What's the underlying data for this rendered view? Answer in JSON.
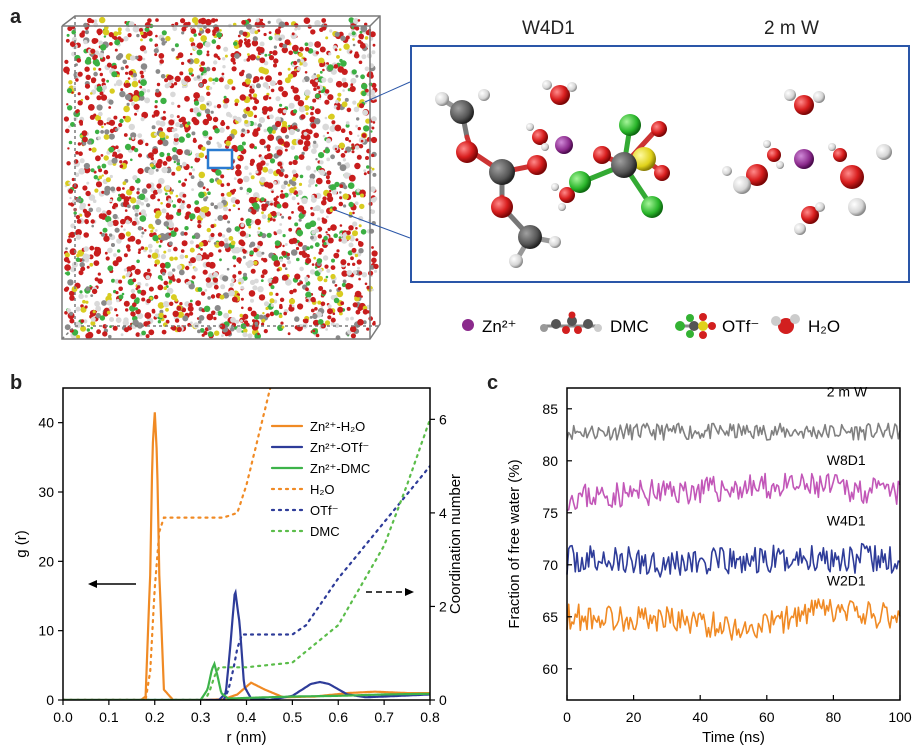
{
  "panel_a": {
    "letter": "a",
    "titles": [
      "W4D1",
      "2 m W"
    ],
    "legend": [
      {
        "label": "Zn²⁺",
        "icon": "zinc-ion-icon",
        "color": "#8b2a8c"
      },
      {
        "label": "DMC",
        "icon": "dmc-molecule-icon",
        "color": "#555555"
      },
      {
        "label": "OTf⁻",
        "icon": "otf-molecule-icon",
        "color": "#33b233"
      },
      {
        "label": "H₂O",
        "icon": "water-molecule-icon",
        "color": "#d21f1f"
      }
    ]
  },
  "chart_data": [
    {
      "panel": "b",
      "type": "line",
      "xlabel": "r (nm)",
      "ylabel_left": "g (r)",
      "ylabel_right": "Coordination number",
      "xlim": [
        0.0,
        0.8
      ],
      "ylim_left": [
        0,
        45
      ],
      "ylim_right": [
        0,
        6.67
      ],
      "x_ticks": [
        "0.0",
        "0.1",
        "0.2",
        "0.3",
        "0.4",
        "0.5",
        "0.6",
        "0.7",
        "0.8"
      ],
      "y_ticks_left": [
        "0",
        "10",
        "20",
        "30",
        "40"
      ],
      "y_ticks_right": [
        "0",
        "2",
        "4",
        "6"
      ],
      "series": [
        {
          "name": "Zn²⁺-H₂O",
          "axis": "left",
          "style": "solid",
          "color": "#f08a24",
          "x": [
            0.0,
            0.17,
            0.18,
            0.19,
            0.195,
            0.2,
            0.205,
            0.21,
            0.22,
            0.24,
            0.3,
            0.35,
            0.38,
            0.41,
            0.44,
            0.48,
            0.55,
            0.62,
            0.68,
            0.75,
            0.8
          ],
          "y": [
            0,
            0,
            0.5,
            18,
            36,
            41.5,
            35,
            18,
            1.5,
            0,
            0,
            0.1,
            0.8,
            2.5,
            1.5,
            0.4,
            0.5,
            1.0,
            1.2,
            1.0,
            1.0
          ]
        },
        {
          "name": "Zn²⁺-OTf⁻",
          "axis": "left",
          "style": "solid",
          "color": "#2e3c99",
          "x": [
            0.0,
            0.34,
            0.355,
            0.365,
            0.375,
            0.385,
            0.395,
            0.41,
            0.45,
            0.5,
            0.54,
            0.56,
            0.58,
            0.62,
            0.66,
            0.7,
            0.8
          ],
          "y": [
            0,
            0,
            1,
            8,
            16,
            11,
            2,
            0.2,
            0,
            0.6,
            2.3,
            2.6,
            2.3,
            0.8,
            0.4,
            0.5,
            0.8
          ]
        },
        {
          "name": "Zn²⁺-DMC",
          "axis": "left",
          "style": "solid",
          "color": "#3db34a",
          "x": [
            0.0,
            0.3,
            0.315,
            0.325,
            0.33,
            0.335,
            0.345,
            0.36,
            0.4,
            0.5,
            0.6,
            0.7,
            0.8
          ],
          "y": [
            0,
            0,
            1.5,
            4.5,
            5.2,
            4,
            1,
            0.2,
            0.3,
            0.5,
            0.6,
            0.8,
            0.9
          ]
        },
        {
          "name": "H₂O",
          "axis": "right",
          "style": "dotted",
          "color": "#f08a24",
          "x": [
            0.0,
            0.18,
            0.19,
            0.2,
            0.21,
            0.22,
            0.3,
            0.35,
            0.38,
            0.4,
            0.43,
            0.46
          ],
          "y": [
            0,
            0,
            0.6,
            2.4,
            3.6,
            3.9,
            3.9,
            3.9,
            4.0,
            4.6,
            5.8,
            7.0
          ]
        },
        {
          "name": "OTf⁻",
          "axis": "right",
          "style": "dotted",
          "color": "#2e3c99",
          "x": [
            0.0,
            0.35,
            0.36,
            0.37,
            0.38,
            0.39,
            0.4,
            0.5,
            0.53,
            0.6,
            0.7,
            0.8
          ],
          "y": [
            0,
            0,
            0.2,
            0.6,
            1.1,
            1.4,
            1.4,
            1.4,
            1.6,
            2.6,
            3.8,
            5.0
          ]
        },
        {
          "name": "DMC",
          "axis": "right",
          "style": "dotted",
          "color": "#5bbd4a",
          "x": [
            0.0,
            0.31,
            0.32,
            0.33,
            0.34,
            0.35,
            0.4,
            0.5,
            0.6,
            0.7,
            0.75,
            0.8
          ],
          "y": [
            0,
            0,
            0.2,
            0.5,
            0.7,
            0.7,
            0.7,
            0.8,
            1.6,
            3.3,
            4.6,
            6.0
          ]
        }
      ],
      "annotations": [
        {
          "text": "b",
          "role": "panel-letter"
        }
      ]
    },
    {
      "panel": "c",
      "type": "line",
      "xlabel": "Time (ns)",
      "ylabel": "Fraction of free water (%)",
      "xlim": [
        0,
        100
      ],
      "ylim": [
        57,
        87
      ],
      "x_ticks": [
        "0",
        "20",
        "40",
        "60",
        "80",
        "100"
      ],
      "y_ticks": [
        "60",
        "65",
        "70",
        "75",
        "80",
        "85"
      ],
      "series": [
        {
          "name": "2 m W",
          "color": "#808080",
          "mean": 82.8,
          "noise": 0.5,
          "seed": 11,
          "x": [
            0,
            100
          ],
          "y": [
            82.8,
            82.8
          ]
        },
        {
          "name": "W8D1",
          "color": "#c257b8",
          "mean": 76.8,
          "noise": 0.8,
          "seed": 23,
          "x": [
            0,
            30,
            60,
            80,
            100
          ],
          "y": [
            76.5,
            77.0,
            77.5,
            77.5,
            76.8
          ]
        },
        {
          "name": "W4D1",
          "color": "#2e3c99",
          "mean": 70.3,
          "noise": 0.9,
          "seed": 37,
          "x": [
            0,
            20,
            50,
            80,
            100
          ],
          "y": [
            70.5,
            70.3,
            70.2,
            70.8,
            70.3
          ]
        },
        {
          "name": "W2D1",
          "color": "#f08a24",
          "mean": 64.8,
          "noise": 0.8,
          "seed": 53,
          "x": [
            0,
            30,
            55,
            75,
            100
          ],
          "y": [
            65.0,
            64.8,
            63.8,
            65.6,
            65.0
          ]
        }
      ],
      "annotations": [
        {
          "text": "c",
          "role": "panel-letter"
        }
      ]
    }
  ]
}
